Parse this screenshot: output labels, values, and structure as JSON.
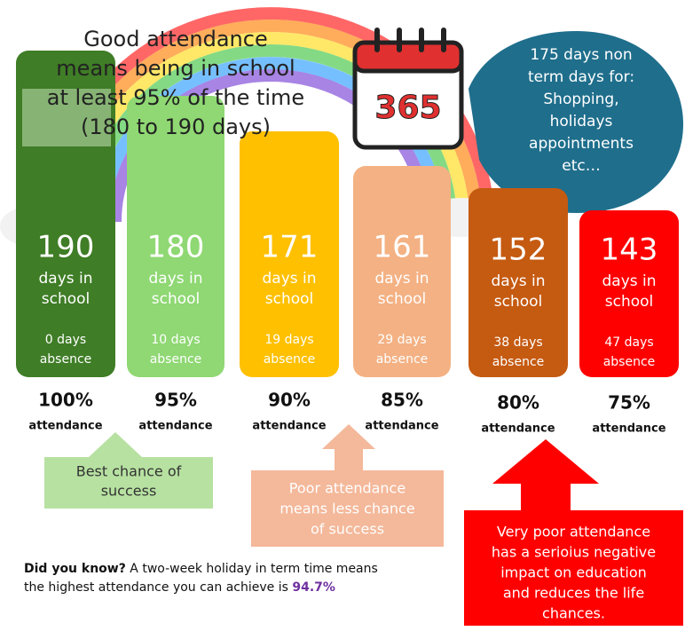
{
  "header": {
    "lines": [
      "Good attendance",
      "means being in school",
      "at least 95% of the time",
      "(180 to 190 days)"
    ]
  },
  "calendar": {
    "number": "365"
  },
  "bubble": {
    "lines": [
      "175 days non",
      "term days for:",
      "Shopping,",
      "holidays",
      "appointments",
      "etc…"
    ]
  },
  "columns": [
    {
      "days": "190",
      "days_label": [
        "days in",
        "school"
      ],
      "absence": [
        "0 days",
        "absence"
      ],
      "percent": "100%",
      "attendance": "attendance"
    },
    {
      "days": "180",
      "days_label": [
        "days in",
        "school"
      ],
      "absence": [
        "10 days",
        "absence"
      ],
      "percent": "95%",
      "attendance": "attendance"
    },
    {
      "days": "171",
      "days_label": [
        "days in",
        "school"
      ],
      "absence": [
        "19 days",
        "absence"
      ],
      "percent": "90%",
      "attendance": "attendance"
    },
    {
      "days": "161",
      "days_label": [
        "days in",
        "school"
      ],
      "absence": [
        "29 days",
        "absence"
      ],
      "percent": "85%",
      "attendance": "attendance"
    },
    {
      "days": "152",
      "days_label": [
        "days in",
        "school"
      ],
      "absence": [
        "38 days",
        "absence"
      ],
      "percent": "80%",
      "attendance": "attendance"
    },
    {
      "days": "143",
      "days_label": [
        "days in",
        "school"
      ],
      "absence": [
        "47 days",
        "absence"
      ],
      "percent": "75%",
      "attendance": "attendance"
    }
  ],
  "callouts": [
    {
      "lines": [
        "Best chance of",
        "success"
      ]
    },
    {
      "lines": [
        "Poor attendance",
        "means less chance",
        "of success"
      ]
    },
    {
      "lines": [
        "Very poor attendance",
        "has a serioius negative",
        "impact on education",
        "and reduces the life",
        "chances."
      ]
    }
  ],
  "footnote": {
    "lead": "Did you know?",
    "text_1": " A two-week holiday in term time means",
    "text_2": "the highest attendance you can achieve is ",
    "highlight": "94.7%"
  }
}
